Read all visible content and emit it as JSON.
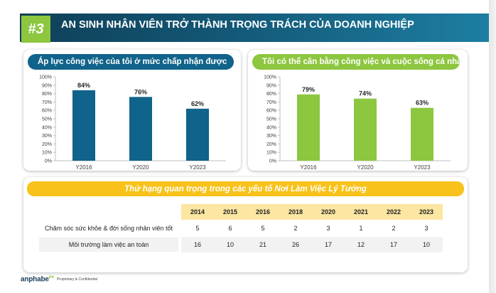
{
  "header": {
    "number": "#3",
    "title": "AN SINH NHÂN VIÊN TRỞ THÀNH TRỌNG TRÁCH CỦA DOANH NGHIỆP"
  },
  "colors": {
    "navy": "#10638a",
    "green": "#8dc63f",
    "yellow": "#f8c21a"
  },
  "chart_data": [
    {
      "type": "bar",
      "title": "Áp lực công việc của tôi ở mức chấp nhận được",
      "categories": [
        "Y2016",
        "Y2020",
        "Y2023"
      ],
      "values": [
        84,
        76,
        62
      ],
      "data_labels": [
        "84%",
        "76%",
        "62%"
      ],
      "ylim": [
        0,
        100
      ],
      "yticks": [
        "0%",
        "10%",
        "20%",
        "30%",
        "40%",
        "50%",
        "60%",
        "70%",
        "80%",
        "90%",
        "100%"
      ],
      "color": "#10638a"
    },
    {
      "type": "bar",
      "title": "Tôi có thể cân bằng công việc và cuộc sống cá nhân",
      "categories": [
        "Y2016",
        "Y2020",
        "Y2023"
      ],
      "values": [
        79,
        74,
        63
      ],
      "data_labels": [
        "79%",
        "74%",
        "63%"
      ],
      "ylim": [
        0,
        100
      ],
      "yticks": [
        "0%",
        "10%",
        "20%",
        "30%",
        "40%",
        "50%",
        "60%",
        "70%",
        "80%",
        "90%",
        "100%"
      ],
      "color": "#8dc63f"
    }
  ],
  "ranking": {
    "title": "Thứ hạng quan trọng trong các yếu tố Nơi Làm Việc Lý Tưởng",
    "years": [
      "2014",
      "2015",
      "2016",
      "2018",
      "2020",
      "2021",
      "2022",
      "2023"
    ],
    "rows": [
      {
        "label": "Chăm sóc sức khỏe & đời sống nhân viên tốt",
        "values": [
          "5",
          "6",
          "5",
          "2",
          "3",
          "1",
          "2",
          "3"
        ]
      },
      {
        "label": "Môi trường làm việc an toàn",
        "values": [
          "16",
          "10",
          "21",
          "26",
          "17",
          "12",
          "17",
          "10"
        ]
      }
    ]
  },
  "footer": {
    "brand": "anphabe",
    "brand_sup": "ex",
    "confidential": "Proprietary & Confidential"
  }
}
